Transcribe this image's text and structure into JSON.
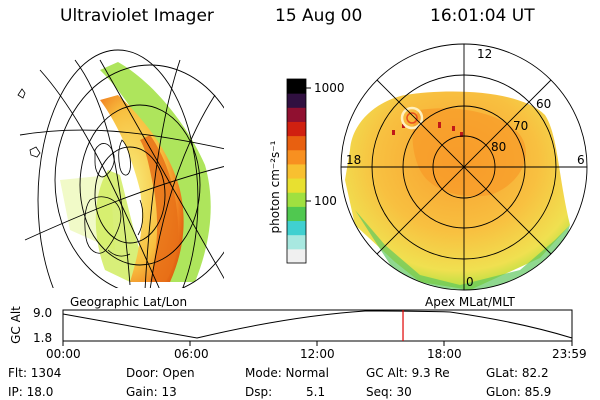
{
  "header": {
    "instrument": "Ultraviolet Imager",
    "date": "15 Aug 00",
    "time": "16:01:04 UT"
  },
  "colorbar": {
    "unit_label": "photon cm⁻²s⁻¹",
    "ticks": [
      "1000",
      "100"
    ],
    "colors": [
      "#f0f0f0",
      "#a8e8e0",
      "#40d0d0",
      "#50c850",
      "#a0e040",
      "#e8e030",
      "#f8c030",
      "#f89020",
      "#e86010",
      "#d02010",
      "#901030",
      "#301040",
      "#000000"
    ]
  },
  "panels": {
    "left_label": "Geographic Lat/Lon",
    "right_label": "Apex MLat/MLT"
  },
  "polar_plot": {
    "mlt_labels": [
      "12",
      "18",
      "6",
      "0"
    ],
    "lat_labels": [
      "60",
      "70",
      "80"
    ]
  },
  "timeline": {
    "axis_title": "GC Alt",
    "y_ticks": [
      "9.0",
      "1.8"
    ],
    "x_ticks": [
      "00:00",
      "06:00",
      "12:00",
      "18:00",
      "23:59"
    ],
    "current_time_fraction": 0.668
  },
  "info": {
    "flt": "Flt: 1304",
    "ip": "IP: 18.0",
    "door": "Door: Open",
    "gain": "Gain: 13",
    "mode": "Mode: Normal",
    "dsp_label": "Dsp:",
    "dsp_value": "5.1",
    "gc_alt": "GC Alt: 9.3 Re",
    "seq": "Seq: 30",
    "glat": "GLat: 82.2",
    "glon": "GLon: 85.9"
  }
}
